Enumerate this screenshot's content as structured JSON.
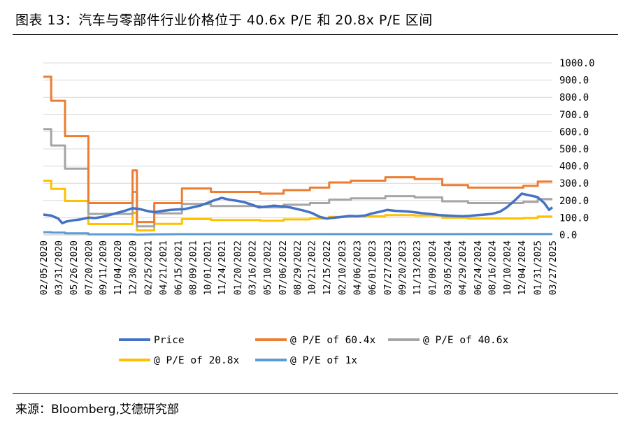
{
  "header": {
    "title": "图表 13：汽车与零部件行业价格位于 40.6x P/E 和 20.8x P/E 区间"
  },
  "footer": {
    "source": "来源：Bloomberg,艾德研究部"
  },
  "chart_data": {
    "type": "line",
    "title": "",
    "xlabel": "",
    "ylabel": "",
    "ylim": [
      0,
      1000
    ],
    "y_axis_position": "right",
    "y_ticks": [
      "1000.0",
      "900.0",
      "800.0",
      "700.0",
      "600.0",
      "500.0",
      "400.0",
      "300.0",
      "200.0",
      "100.0",
      "0.0"
    ],
    "x_ticks": [
      "02/05/2020",
      "03/31/2020",
      "05/26/2020",
      "07/20/2020",
      "09/11/2020",
      "11/04/2020",
      "12/30/2020",
      "02/25/2021",
      "04/21/2021",
      "06/15/2021",
      "08/09/2021",
      "10/01/2021",
      "11/24/2021",
      "01/20/2022",
      "03/16/2022",
      "05/10/2022",
      "07/06/2022",
      "08/29/2022",
      "10/21/2022",
      "12/15/2022",
      "02/10/2023",
      "04/06/2023",
      "06/01/2023",
      "07/27/2023",
      "09/20/2023",
      "11/13/2023",
      "01/09/2024",
      "03/05/2024",
      "04/29/2024",
      "06/24/2024",
      "08/16/2024",
      "10/10/2024",
      "12/04/2024",
      "01/31/2025",
      "03/27/2025"
    ],
    "gridlines": true,
    "legend_position": "bottom",
    "series": [
      {
        "name": "Price",
        "color": "#4472C4",
        "points": [
          [
            "02/05/2020",
            118
          ],
          [
            "03/05/2020",
            112
          ],
          [
            "03/31/2020",
            95
          ],
          [
            "04/15/2020",
            68
          ],
          [
            "05/01/2020",
            78
          ],
          [
            "05/26/2020",
            85
          ],
          [
            "06/20/2020",
            90
          ],
          [
            "07/20/2020",
            100
          ],
          [
            "08/15/2020",
            98
          ],
          [
            "09/11/2020",
            105
          ],
          [
            "10/05/2020",
            115
          ],
          [
            "11/04/2020",
            128
          ],
          [
            "12/01/2020",
            140
          ],
          [
            "12/30/2020",
            155
          ],
          [
            "01/25/2021",
            150
          ],
          [
            "02/25/2021",
            138
          ],
          [
            "03/20/2021",
            132
          ],
          [
            "04/21/2021",
            140
          ],
          [
            "05/20/2021",
            145
          ],
          [
            "06/15/2021",
            148
          ],
          [
            "07/10/2021",
            150
          ],
          [
            "08/09/2021",
            160
          ],
          [
            "09/05/2021",
            170
          ],
          [
            "10/01/2021",
            185
          ],
          [
            "10/25/2021",
            200
          ],
          [
            "11/24/2021",
            215
          ],
          [
            "12/20/2021",
            205
          ],
          [
            "01/20/2022",
            198
          ],
          [
            "02/15/2022",
            190
          ],
          [
            "03/16/2022",
            175
          ],
          [
            "04/10/2022",
            160
          ],
          [
            "05/10/2022",
            165
          ],
          [
            "06/05/2022",
            170
          ],
          [
            "07/06/2022",
            165
          ],
          [
            "08/01/2022",
            160
          ],
          [
            "08/29/2022",
            150
          ],
          [
            "09/25/2022",
            140
          ],
          [
            "10/21/2022",
            128
          ],
          [
            "11/20/2022",
            105
          ],
          [
            "12/15/2022",
            95
          ],
          [
            "01/15/2023",
            100
          ],
          [
            "02/10/2023",
            105
          ],
          [
            "03/10/2023",
            110
          ],
          [
            "04/06/2023",
            108
          ],
          [
            "05/05/2023",
            112
          ],
          [
            "06/01/2023",
            125
          ],
          [
            "07/01/2023",
            135
          ],
          [
            "07/27/2023",
            145
          ],
          [
            "08/25/2023",
            140
          ],
          [
            "09/20/2023",
            138
          ],
          [
            "10/15/2023",
            135
          ],
          [
            "11/13/2023",
            130
          ],
          [
            "12/10/2023",
            125
          ],
          [
            "01/09/2024",
            120
          ],
          [
            "02/05/2024",
            115
          ],
          [
            "03/05/2024",
            112
          ],
          [
            "04/01/2024",
            110
          ],
          [
            "04/29/2024",
            108
          ],
          [
            "05/25/2024",
            110
          ],
          [
            "06/24/2024",
            115
          ],
          [
            "07/20/2024",
            118
          ],
          [
            "08/16/2024",
            122
          ],
          [
            "09/15/2024",
            135
          ],
          [
            "10/10/2024",
            160
          ],
          [
            "11/05/2024",
            195
          ],
          [
            "12/04/2024",
            240
          ],
          [
            "01/01/2025",
            230
          ],
          [
            "01/31/2025",
            220
          ],
          [
            "02/25/2025",
            185
          ],
          [
            "03/15/2025",
            145
          ],
          [
            "03/27/2025",
            160
          ]
        ]
      },
      {
        "name": "@ P/E of 60.4x",
        "color": "#ED7D31",
        "points": [
          [
            "02/05/2020",
            920
          ],
          [
            "03/05/2020",
            920
          ],
          [
            "03/05/2020",
            780
          ],
          [
            "04/25/2020",
            780
          ],
          [
            "04/25/2020",
            575
          ],
          [
            "07/20/2020",
            575
          ],
          [
            "07/20/2020",
            185
          ],
          [
            "12/30/2020",
            185
          ],
          [
            "12/30/2020",
            375
          ],
          [
            "01/15/2021",
            375
          ],
          [
            "01/15/2021",
            75
          ],
          [
            "03/20/2021",
            75
          ],
          [
            "03/20/2021",
            185
          ],
          [
            "06/30/2021",
            185
          ],
          [
            "06/30/2021",
            270
          ],
          [
            "10/15/2021",
            270
          ],
          [
            "10/15/2021",
            250
          ],
          [
            "04/15/2022",
            250
          ],
          [
            "04/15/2022",
            240
          ],
          [
            "07/10/2022",
            240
          ],
          [
            "07/10/2022",
            260
          ],
          [
            "10/15/2022",
            260
          ],
          [
            "10/15/2022",
            275
          ],
          [
            "12/25/2022",
            275
          ],
          [
            "12/25/2022",
            305
          ],
          [
            "03/15/2023",
            305
          ],
          [
            "03/15/2023",
            315
          ],
          [
            "07/20/2023",
            315
          ],
          [
            "07/20/2023",
            335
          ],
          [
            "11/05/2023",
            335
          ],
          [
            "11/05/2023",
            325
          ],
          [
            "02/15/2024",
            325
          ],
          [
            "02/15/2024",
            290
          ],
          [
            "05/20/2024",
            290
          ],
          [
            "05/20/2024",
            275
          ],
          [
            "12/10/2024",
            275
          ],
          [
            "12/10/2024",
            285
          ],
          [
            "02/01/2025",
            285
          ],
          [
            "02/01/2025",
            310
          ],
          [
            "03/27/2025",
            310
          ]
        ]
      },
      {
        "name": "@ P/E of 40.6x",
        "color": "#A5A5A5",
        "points": [
          [
            "02/05/2020",
            615
          ],
          [
            "03/05/2020",
            615
          ],
          [
            "03/05/2020",
            520
          ],
          [
            "04/25/2020",
            520
          ],
          [
            "04/25/2020",
            385
          ],
          [
            "07/20/2020",
            385
          ],
          [
            "07/20/2020",
            122
          ],
          [
            "12/30/2020",
            122
          ],
          [
            "12/30/2020",
            250
          ],
          [
            "01/15/2021",
            250
          ],
          [
            "01/15/2021",
            50
          ],
          [
            "03/20/2021",
            50
          ],
          [
            "03/20/2021",
            125
          ],
          [
            "06/30/2021",
            125
          ],
          [
            "06/30/2021",
            180
          ],
          [
            "10/15/2021",
            180
          ],
          [
            "10/15/2021",
            168
          ],
          [
            "04/15/2022",
            168
          ],
          [
            "04/15/2022",
            160
          ],
          [
            "07/10/2022",
            160
          ],
          [
            "07/10/2022",
            175
          ],
          [
            "10/15/2022",
            175
          ],
          [
            "10/15/2022",
            185
          ],
          [
            "12/25/2022",
            185
          ],
          [
            "12/25/2022",
            205
          ],
          [
            "03/15/2023",
            205
          ],
          [
            "03/15/2023",
            212
          ],
          [
            "07/20/2023",
            212
          ],
          [
            "07/20/2023",
            225
          ],
          [
            "11/05/2023",
            225
          ],
          [
            "11/05/2023",
            218
          ],
          [
            "02/15/2024",
            218
          ],
          [
            "02/15/2024",
            195
          ],
          [
            "05/20/2024",
            195
          ],
          [
            "05/20/2024",
            185
          ],
          [
            "12/10/2024",
            185
          ],
          [
            "12/10/2024",
            192
          ],
          [
            "02/01/2025",
            192
          ],
          [
            "02/01/2025",
            208
          ],
          [
            "03/27/2025",
            208
          ]
        ]
      },
      {
        "name": "@ P/E of 20.8x",
        "color": "#FFC000",
        "points": [
          [
            "02/05/2020",
            315
          ],
          [
            "03/05/2020",
            315
          ],
          [
            "03/05/2020",
            267
          ],
          [
            "04/25/2020",
            267
          ],
          [
            "04/25/2020",
            197
          ],
          [
            "07/20/2020",
            197
          ],
          [
            "07/20/2020",
            63
          ],
          [
            "12/30/2020",
            63
          ],
          [
            "12/30/2020",
            128
          ],
          [
            "01/15/2021",
            128
          ],
          [
            "01/15/2021",
            26
          ],
          [
            "03/20/2021",
            26
          ],
          [
            "03/20/2021",
            64
          ],
          [
            "06/30/2021",
            64
          ],
          [
            "06/30/2021",
            92
          ],
          [
            "10/15/2021",
            92
          ],
          [
            "10/15/2021",
            86
          ],
          [
            "04/15/2022",
            86
          ],
          [
            "04/15/2022",
            82
          ],
          [
            "07/10/2022",
            82
          ],
          [
            "07/10/2022",
            90
          ],
          [
            "10/15/2022",
            90
          ],
          [
            "10/15/2022",
            95
          ],
          [
            "12/25/2022",
            95
          ],
          [
            "12/25/2022",
            105
          ],
          [
            "03/15/2023",
            105
          ],
          [
            "03/15/2023",
            108
          ],
          [
            "07/20/2023",
            108
          ],
          [
            "07/20/2023",
            115
          ],
          [
            "11/05/2023",
            115
          ],
          [
            "11/05/2023",
            112
          ],
          [
            "02/15/2024",
            112
          ],
          [
            "02/15/2024",
            100
          ],
          [
            "05/20/2024",
            100
          ],
          [
            "05/20/2024",
            95
          ],
          [
            "12/10/2024",
            95
          ],
          [
            "12/10/2024",
            98
          ],
          [
            "02/01/2025",
            98
          ],
          [
            "02/01/2025",
            107
          ],
          [
            "03/27/2025",
            107
          ]
        ]
      },
      {
        "name": "@ P/E of 1x",
        "color": "#5B9BD5",
        "points": [
          [
            "02/05/2020",
            15
          ],
          [
            "03/05/2020",
            15
          ],
          [
            "03/05/2020",
            13
          ],
          [
            "04/25/2020",
            13
          ],
          [
            "04/25/2020",
            9
          ],
          [
            "07/20/2020",
            9
          ],
          [
            "07/20/2020",
            3
          ],
          [
            "12/30/2020",
            3
          ],
          [
            "01/15/2021",
            1
          ],
          [
            "03/20/2021",
            3
          ],
          [
            "06/30/2021",
            4
          ],
          [
            "03/27/2025",
            5
          ]
        ]
      }
    ]
  }
}
